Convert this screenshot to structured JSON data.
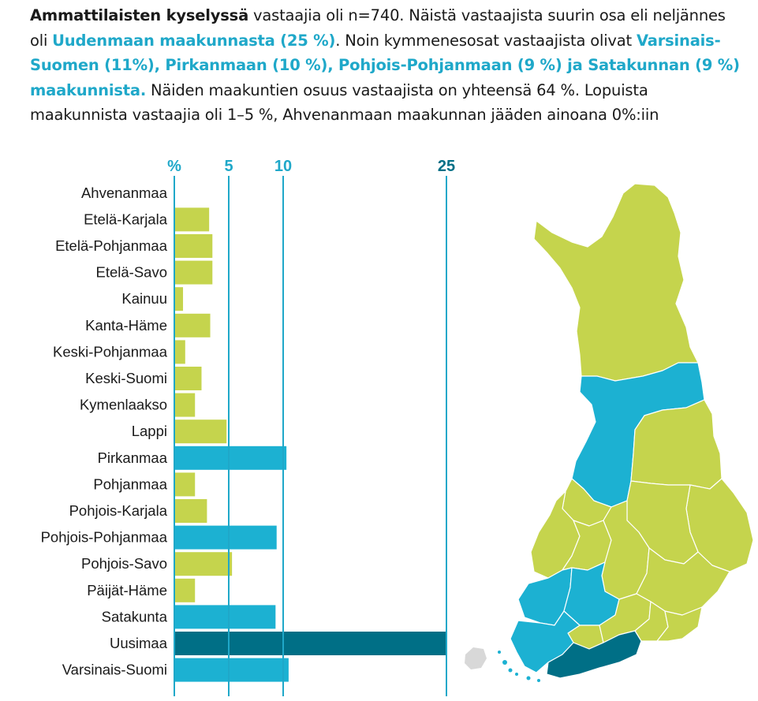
{
  "intro": {
    "p1_bold": "Ammattilaisten kyselyssä",
    "p1_text": " vastaajia oli n=740. Näistä vastaajista suurin osa eli neljännes oli ",
    "p2_hl": "Uudenmaan maakunnasta (25 %)",
    "p3_text": ". Noin kymmenesosat vastaajista olivat ",
    "p4_hl": "Varsinais-Suomen (11%), Pirkanmaan (10 %), Pohjois-Pohjanmaan (9 %) ja Satakunnan (9 %) maakunnista.",
    "p5_text": " Näiden maakuntien osuus vastaajista on yhteensä 64 %. Lopuista maakunnista vastaajia oli 1–5 %, Ahvenanmaan maakunnan jääden ainoana 0%:iin"
  },
  "colors": {
    "green": "#c5d44d",
    "blue": "#1cb1d2",
    "dark": "#006f86",
    "axis": "#1fa8c9",
    "map_border": "#ffffff",
    "map_gray": "#d8d8d8"
  },
  "chart_data": {
    "type": "bar",
    "orientation": "horizontal",
    "axis_label": "%",
    "ticks": [
      5,
      10,
      25
    ],
    "xlim": [
      0,
      25
    ],
    "categories": [
      "Ahvenanmaa",
      "Etelä-Karjala",
      "Etelä-Pohjanmaa",
      "Etelä-Savo",
      "Kainuu",
      "Kanta-Häme",
      "Keski-Pohjanmaa",
      "Keski-Suomi",
      "Kymenlaakso",
      "Lappi",
      "Pirkanmaa",
      "Pohjanmaa",
      "Pohjois-Karjala",
      "Pohjois-Pohjanmaa",
      "Pohjois-Savo",
      "Päijät-Häme",
      "Satakunta",
      "Uusimaa",
      "Varsinais-Suomi"
    ],
    "values": [
      0,
      3.2,
      3.5,
      3.5,
      0.8,
      3.3,
      1,
      2.5,
      1.9,
      4.8,
      10.3,
      1.9,
      3,
      9.4,
      5.3,
      1.9,
      9.3,
      25,
      10.5
    ],
    "highlight": [
      "green",
      "green",
      "green",
      "green",
      "green",
      "green",
      "green",
      "green",
      "green",
      "green",
      "blue",
      "green",
      "green",
      "blue",
      "green",
      "green",
      "blue",
      "dark",
      "blue"
    ]
  }
}
